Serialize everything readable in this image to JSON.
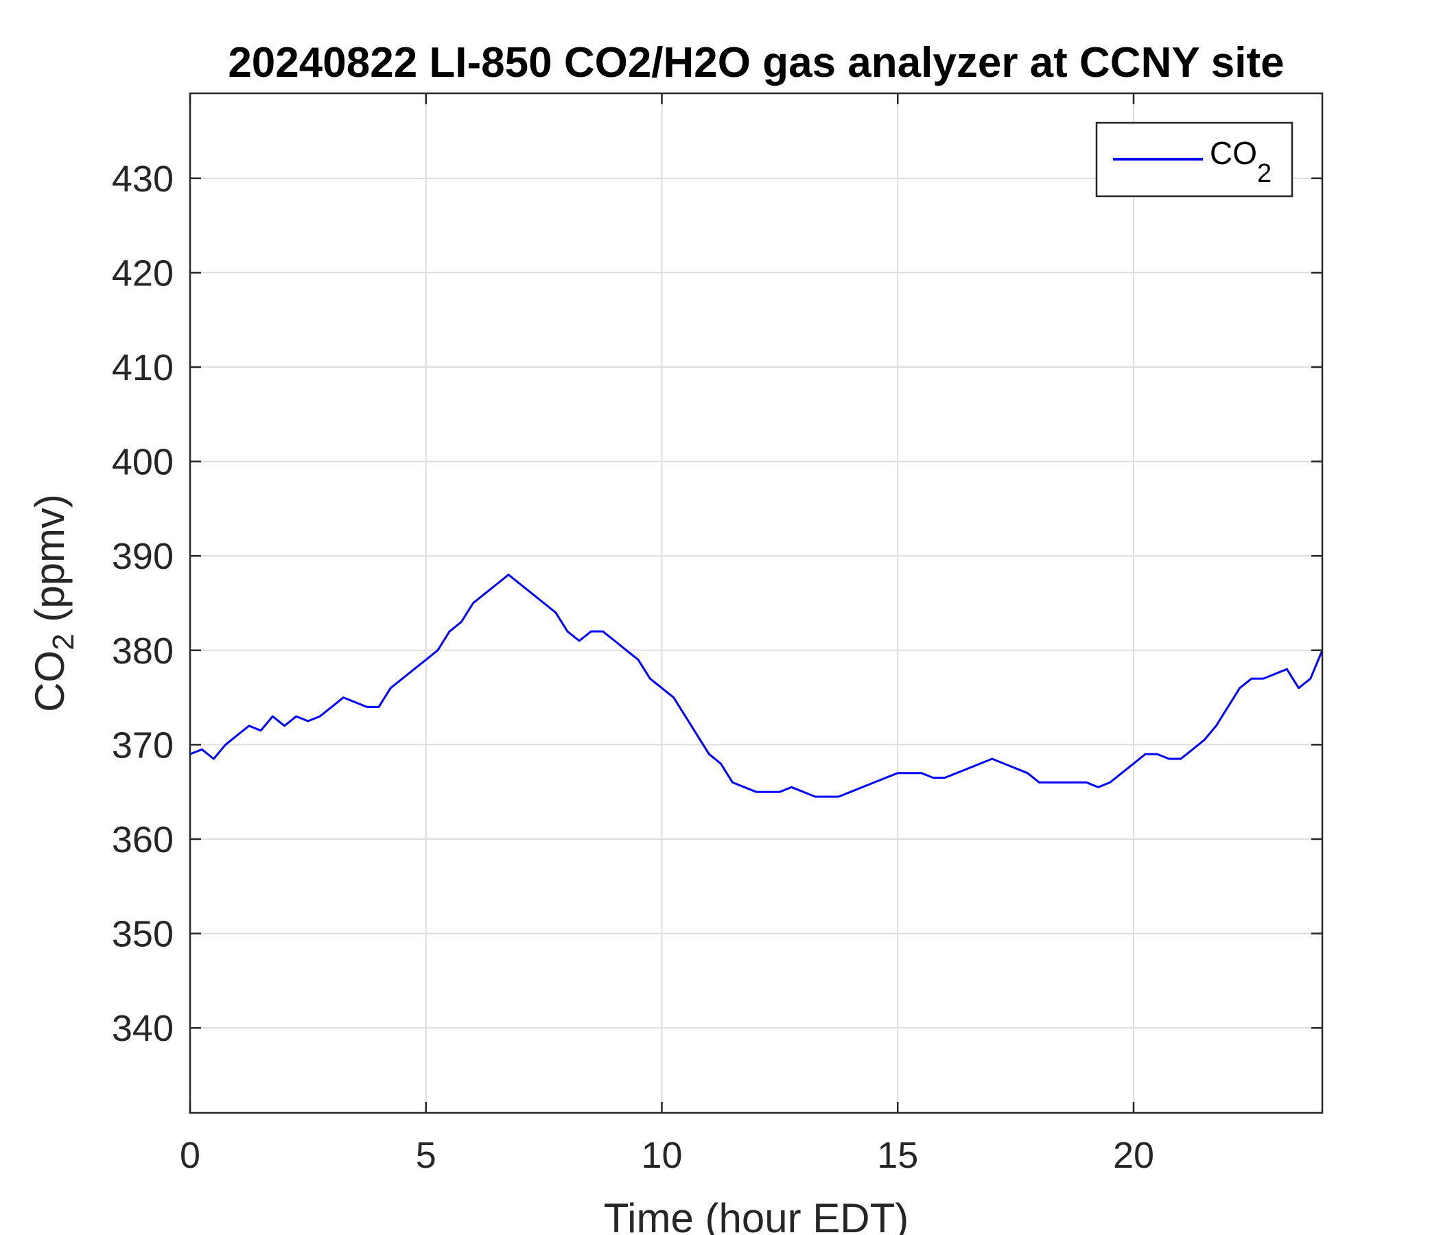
{
  "chart_data": {
    "type": "line",
    "title": "20240822 LI-850 CO2/H2O gas analyzer at CCNY site",
    "xlabel": "Time (hour EDT)",
    "ylabel_main": "CO",
    "ylabel_sub": "2",
    "ylabel_unit": " (ppmv)",
    "xlim": [
      0,
      24
    ],
    "ylim": [
      331,
      439
    ],
    "xticks": [
      0,
      5,
      10,
      15,
      20
    ],
    "xtick_labels": [
      "0",
      "5",
      "10",
      "15",
      "20"
    ],
    "yticks": [
      340,
      350,
      360,
      370,
      380,
      390,
      400,
      410,
      420,
      430
    ],
    "ytick_labels": [
      "340",
      "350",
      "360",
      "370",
      "380",
      "390",
      "400",
      "410",
      "420",
      "430"
    ],
    "grid": true,
    "legend": {
      "placement": "top-right",
      "label_main": "CO",
      "label_sub": "2"
    },
    "series": [
      {
        "name": "CO2",
        "color": "#0000ff",
        "x": [
          0,
          0.25,
          0.5,
          0.75,
          1.0,
          1.25,
          1.5,
          1.75,
          2.0,
          2.25,
          2.5,
          2.75,
          3.0,
          3.25,
          3.5,
          3.75,
          4.0,
          4.25,
          4.5,
          4.75,
          5.0,
          5.25,
          5.5,
          5.75,
          6.0,
          6.25,
          6.5,
          6.75,
          7.0,
          7.25,
          7.5,
          7.75,
          8.0,
          8.25,
          8.5,
          8.75,
          9.0,
          9.25,
          9.5,
          9.75,
          10.0,
          10.25,
          10.5,
          10.75,
          11.0,
          11.25,
          11.5,
          11.75,
          12.0,
          12.25,
          12.5,
          12.75,
          13.0,
          13.25,
          13.5,
          13.75,
          14.0,
          14.25,
          14.5,
          14.75,
          15.0,
          15.25,
          15.5,
          15.75,
          16.0,
          16.25,
          16.5,
          16.75,
          17.0,
          17.25,
          17.5,
          17.75,
          18.0,
          18.25,
          18.5,
          18.75,
          19.0,
          19.25,
          19.5,
          19.75,
          20.0,
          20.25,
          20.5,
          20.75,
          21.0,
          21.25,
          21.5,
          21.75,
          22.0,
          22.25,
          22.5,
          22.75,
          23.0,
          23.25,
          23.5,
          23.75,
          24.0
        ],
        "y": [
          369,
          369.5,
          368.5,
          370,
          371,
          372,
          371.5,
          373,
          372,
          373,
          372.5,
          373,
          374,
          375,
          374.5,
          374,
          374,
          376,
          377,
          378,
          379,
          380,
          382,
          383,
          385,
          386,
          387,
          388,
          387,
          386,
          385,
          384,
          382,
          381,
          382,
          382,
          381,
          380,
          379,
          377,
          376,
          375,
          373,
          371,
          369,
          368,
          366,
          365.5,
          365,
          365,
          365,
          365.5,
          365,
          364.5,
          364.5,
          364.5,
          365,
          365.5,
          366,
          366.5,
          367,
          367,
          367,
          366.5,
          366.5,
          367,
          367.5,
          368,
          368.5,
          368,
          367.5,
          367,
          366,
          366,
          366,
          366,
          366,
          365.5,
          366,
          367,
          368,
          369,
          369,
          368.5,
          368.5,
          369.5,
          370.5,
          372,
          374,
          376,
          377,
          377,
          377.5,
          378,
          376,
          377,
          380
        ]
      }
    ]
  }
}
